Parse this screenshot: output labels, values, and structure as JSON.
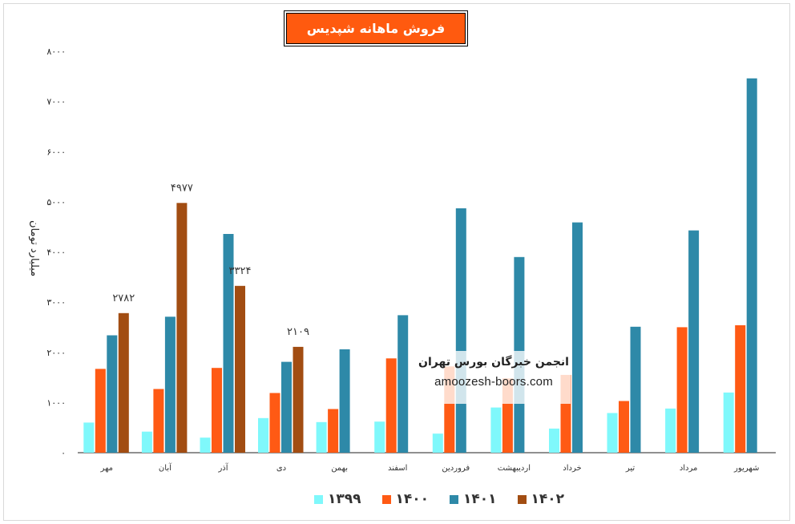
{
  "chart_data": {
    "type": "bar",
    "title": "فروش ماهانه شپدیس",
    "ylabel": "میلیارد تومان",
    "xlabel": "",
    "ylim": [
      0,
      8000
    ],
    "yticks": [
      0,
      1000,
      2000,
      3000,
      4000,
      5000,
      6000,
      7000,
      8000
    ],
    "ytick_labels": [
      "۰",
      "۱۰۰۰",
      "۲۰۰۰",
      "۳۰۰۰",
      "۴۰۰۰",
      "۵۰۰۰",
      "۶۰۰۰",
      "۷۰۰۰",
      "۸۰۰۰"
    ],
    "categories": [
      "مهر",
      "آبان",
      "آذر",
      "دی",
      "بهمن",
      "اسفند",
      "فروردین",
      "اردیبهشت",
      "خرداد",
      "تیر",
      "مرداد",
      "شهریور"
    ],
    "series": [
      {
        "name": "۱۳۹۹",
        "color": "#7ff8fb",
        "values": [
          600,
          420,
          300,
          690,
          610,
          620,
          380,
          900,
          480,
          790,
          880,
          1200
        ]
      },
      {
        "name": "۱۴۰۰",
        "color": "#ff5a14",
        "values": [
          1670,
          1270,
          1690,
          1190,
          870,
          1880,
          1720,
          1480,
          1550,
          1030,
          2500,
          2540
        ]
      },
      {
        "name": "۱۴۰۱",
        "color": "#2e89a8",
        "values": [
          2340,
          2710,
          4360,
          1810,
          2060,
          2740,
          4870,
          3900,
          4590,
          2510,
          4430,
          7460
        ]
      },
      {
        "name": "۱۴۰۲",
        "color": "#a24d12",
        "values": [
          2782,
          4977,
          3324,
          2109,
          null,
          null,
          null,
          null,
          null,
          null,
          null,
          null
        ],
        "data_labels": [
          "۲۷۸۲",
          "۴۹۷۷",
          "۳۳۲۴",
          "۲۱۰۹"
        ]
      }
    ],
    "legend_position": "bottom",
    "grid": false
  },
  "watermark": {
    "title": "انجمن خبرگان بورس تهران",
    "url": "amoozesh-boors.com"
  }
}
